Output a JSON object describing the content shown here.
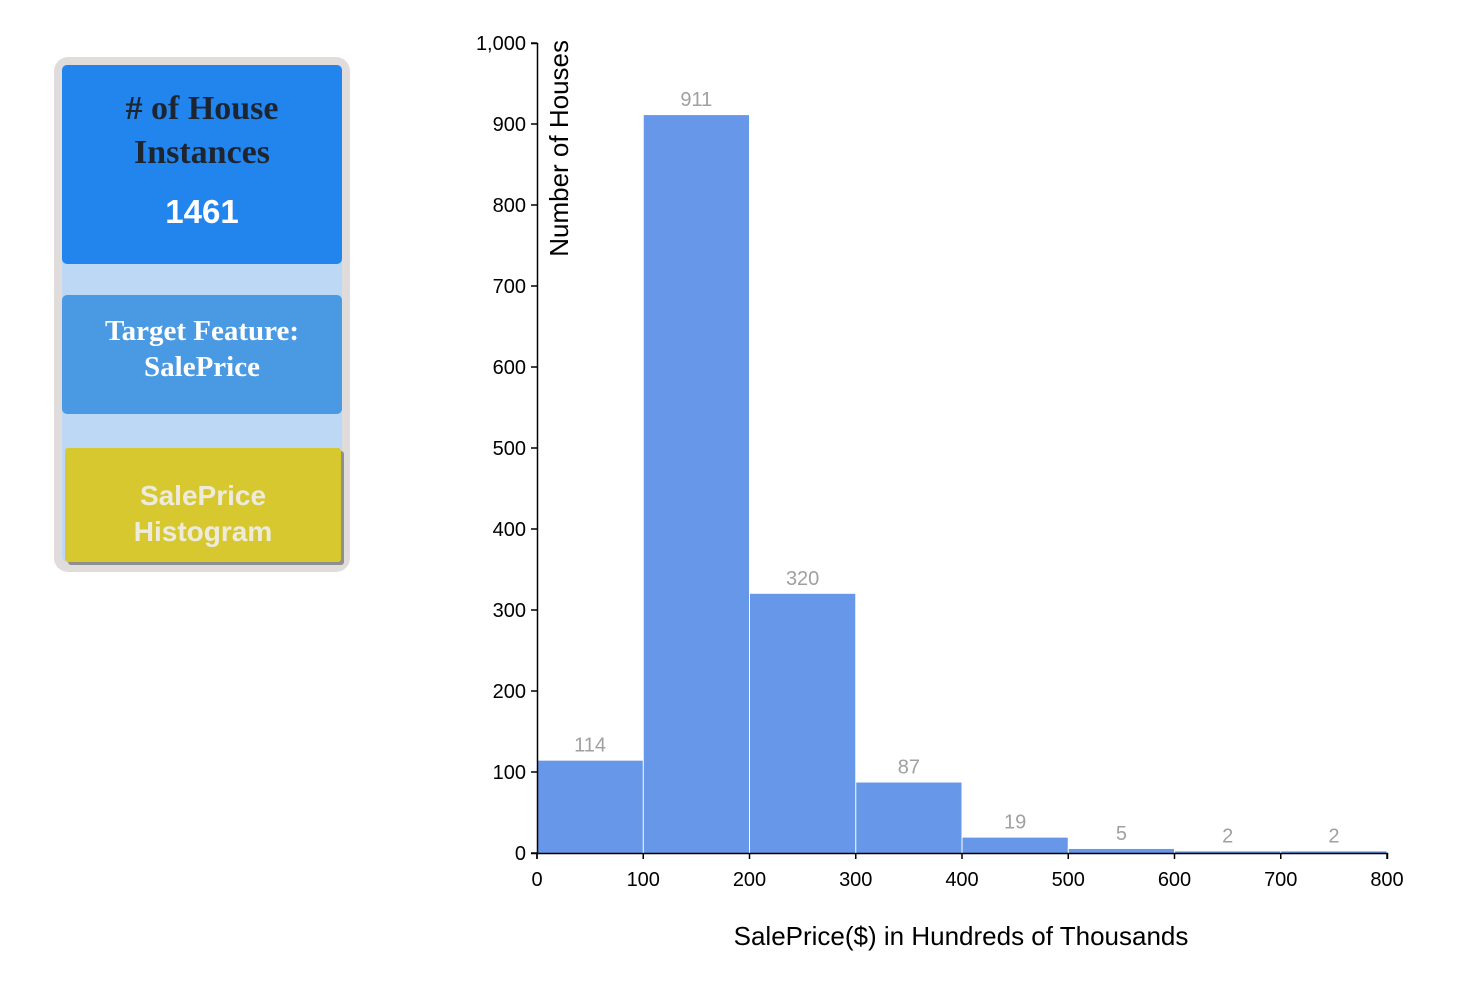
{
  "sidebar": {
    "count_title": "# of House Instances",
    "count_value": "1461",
    "target_label": "Target Feature: SalePrice",
    "histogram_button": "SalePrice Histogram"
  },
  "colors": {
    "count_card": "#2285ee",
    "target_card": "#4a9ae3",
    "histogram_button": "#d8c82f",
    "bar_fill": "#6797e8",
    "bar_label": "#a0a0a0"
  },
  "chart_data": {
    "type": "bar",
    "title": "",
    "xlabel": "SalePrice($) in Hundreds of Thousands",
    "ylabel": "Number of Houses",
    "bins": [
      {
        "x0": 0,
        "x1": 100,
        "count": 114
      },
      {
        "x0": 100,
        "x1": 200,
        "count": 911
      },
      {
        "x0": 200,
        "x1": 300,
        "count": 320
      },
      {
        "x0": 300,
        "x1": 400,
        "count": 87
      },
      {
        "x0": 400,
        "x1": 500,
        "count": 19
      },
      {
        "x0": 500,
        "x1": 600,
        "count": 5
      },
      {
        "x0": 600,
        "x1": 700,
        "count": 2
      },
      {
        "x0": 700,
        "x1": 800,
        "count": 2
      }
    ],
    "xlim": [
      0,
      800
    ],
    "ylim": [
      0,
      1000
    ],
    "x_ticks": [
      "0",
      "100",
      "200",
      "300",
      "400",
      "500",
      "600",
      "700",
      "800"
    ],
    "y_ticks": [
      "0",
      "100",
      "200",
      "300",
      "400",
      "500",
      "600",
      "700",
      "800",
      "900",
      "1,000"
    ],
    "grid": false,
    "legend": "none"
  }
}
